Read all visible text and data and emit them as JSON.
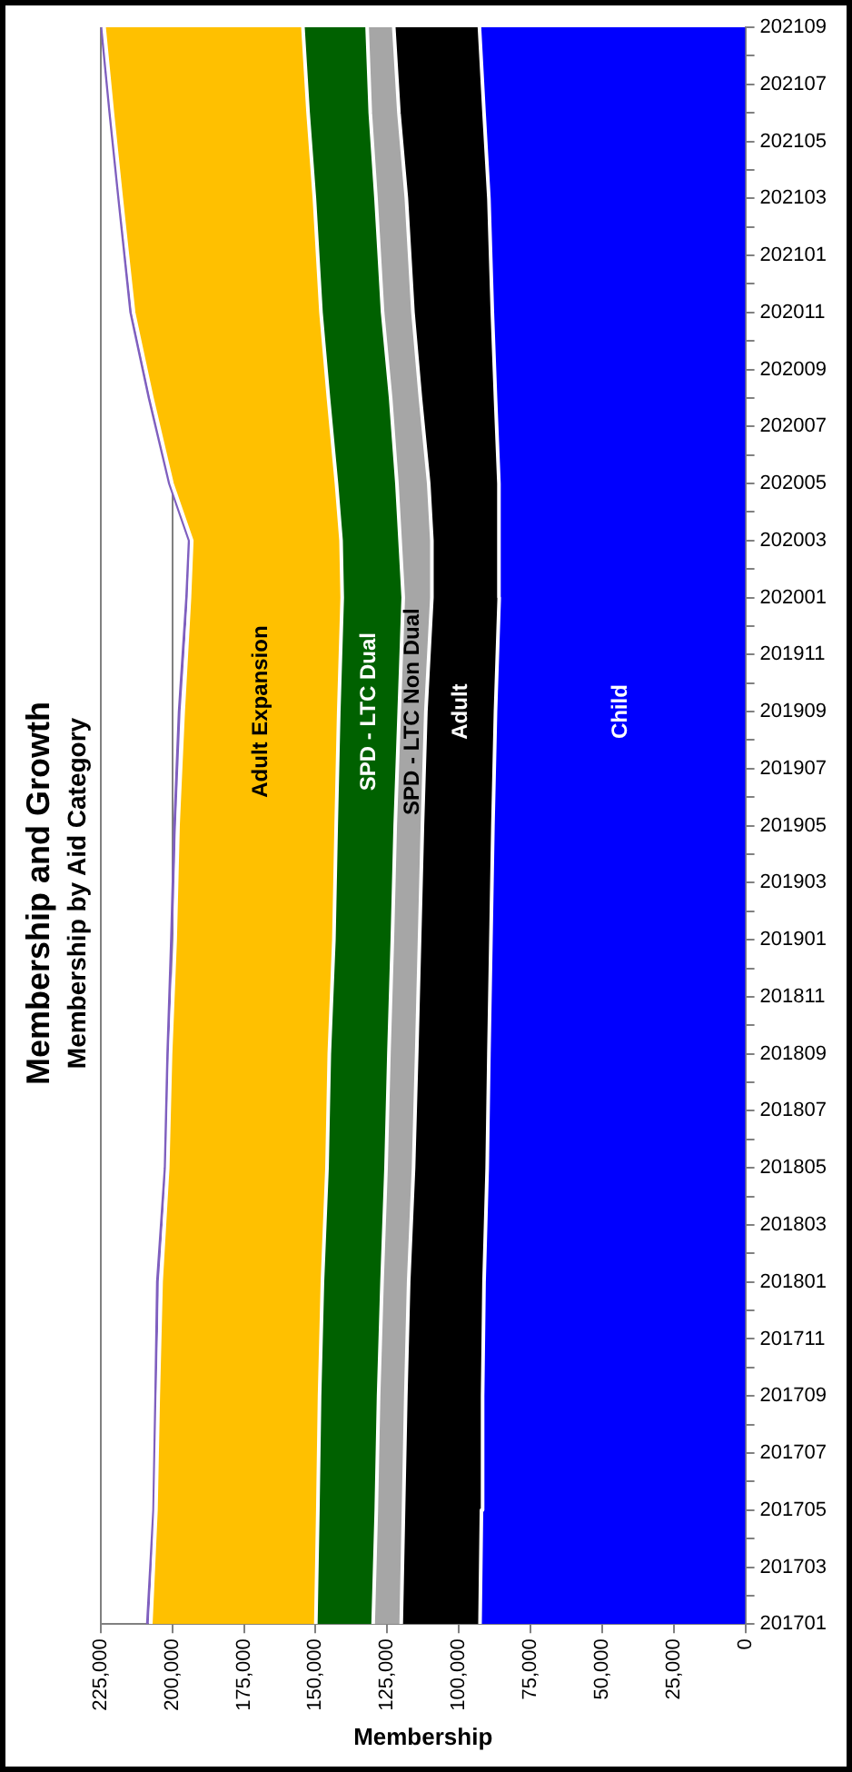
{
  "chart_data": {
    "type": "area",
    "orientation": "horizontal",
    "title": "Membership and Growth",
    "subtitle": "Membership by Aid Category",
    "xlabel": "Membership",
    "x": [
      "2017-01",
      "2017-05",
      "2017-09",
      "2018-01",
      "2018-05",
      "2018-09",
      "2019-01",
      "2019-05",
      "2019-09",
      "2020-01",
      "2020-03",
      "2020-05",
      "2020-08",
      "2020-11",
      "2021-03",
      "2021-06",
      "2021-09"
    ],
    "ylim": [
      "2017-01",
      "2021-09"
    ],
    "yticks": [
      {
        "value": "2017-01",
        "label": "201701"
      },
      {
        "value": "2017-02",
        "label": null
      },
      {
        "value": "2017-03",
        "label": "201703"
      },
      {
        "value": "2017-04",
        "label": null
      },
      {
        "value": "2017-05",
        "label": "201705"
      },
      {
        "value": "2017-06",
        "label": null
      },
      {
        "value": "2017-07",
        "label": "201707"
      },
      {
        "value": "2017-08",
        "label": null
      },
      {
        "value": "2017-09",
        "label": "201709"
      },
      {
        "value": "2017-10",
        "label": null
      },
      {
        "value": "2017-11",
        "label": "201711"
      },
      {
        "value": "2017-12",
        "label": null
      },
      {
        "value": "2018-01",
        "label": "201801"
      },
      {
        "value": "2018-02",
        "label": null
      },
      {
        "value": "2018-03",
        "label": "201803"
      },
      {
        "value": "2018-04",
        "label": null
      },
      {
        "value": "2018-05",
        "label": "201805"
      },
      {
        "value": "2018-06",
        "label": null
      },
      {
        "value": "2018-07",
        "label": "201807"
      },
      {
        "value": "2018-08",
        "label": null
      },
      {
        "value": "2018-09",
        "label": "201809"
      },
      {
        "value": "2018-10",
        "label": null
      },
      {
        "value": "2018-11",
        "label": "201811"
      },
      {
        "value": "2018-12",
        "label": null
      },
      {
        "value": "2019-01",
        "label": "201901"
      },
      {
        "value": "2019-02",
        "label": null
      },
      {
        "value": "2019-03",
        "label": "201903"
      },
      {
        "value": "2019-04",
        "label": null
      },
      {
        "value": "2019-05",
        "label": "201905"
      },
      {
        "value": "2019-06",
        "label": null
      },
      {
        "value": "2019-07",
        "label": "201907"
      },
      {
        "value": "2019-08",
        "label": null
      },
      {
        "value": "2019-09",
        "label": "201909"
      },
      {
        "value": "2019-10",
        "label": null
      },
      {
        "value": "2019-11",
        "label": "201911"
      },
      {
        "value": "2019-12",
        "label": null
      },
      {
        "value": "2020-01",
        "label": "202001"
      },
      {
        "value": "2020-02",
        "label": null
      },
      {
        "value": "2020-03",
        "label": "202003"
      },
      {
        "value": "2020-04",
        "label": null
      },
      {
        "value": "2020-05",
        "label": "202005"
      },
      {
        "value": "2020-06",
        "label": null
      },
      {
        "value": "2020-07",
        "label": "202007"
      },
      {
        "value": "2020-08",
        "label": null
      },
      {
        "value": "2020-09",
        "label": "202009"
      },
      {
        "value": "2020-10",
        "label": null
      },
      {
        "value": "2020-11",
        "label": "202011"
      },
      {
        "value": "2020-12",
        "label": null
      },
      {
        "value": "2021-01",
        "label": "202101"
      },
      {
        "value": "2021-02",
        "label": null
      },
      {
        "value": "2021-03",
        "label": "202103"
      },
      {
        "value": "2021-04",
        "label": null
      },
      {
        "value": "2021-05",
        "label": "202105"
      },
      {
        "value": "2021-06",
        "label": null
      },
      {
        "value": "2021-07",
        "label": "202107"
      },
      {
        "value": "2021-08",
        "label": null
      },
      {
        "value": "2021-09",
        "label": "202109"
      }
    ],
    "xlim": [
      225000,
      0
    ],
    "xticks": [
      {
        "value": 225000,
        "label": "225,000"
      },
      {
        "value": 200000,
        "label": "200,000"
      },
      {
        "value": 175000,
        "label": "175,000"
      },
      {
        "value": 150000,
        "label": "150,000"
      },
      {
        "value": 125000,
        "label": "125,000"
      },
      {
        "value": 100000,
        "label": "100,000"
      },
      {
        "value": 75000,
        "label": "75,000"
      },
      {
        "value": 50000,
        "label": "50,000"
      },
      {
        "value": 25000,
        "label": "25,000"
      },
      {
        "value": 0,
        "label": "0"
      }
    ],
    "stacked": true,
    "grid": "x",
    "series": [
      {
        "name": "Child",
        "color": "#0000ff",
        "values": [
          92600,
          92100,
          91700,
          91200,
          90100,
          89500,
          88800,
          88100,
          87200,
          85900,
          85900,
          86100,
          87200,
          88300,
          89500,
          91200,
          92800
        ]
      },
      {
        "name": "Adult",
        "color": "#000000",
        "values": [
          27500,
          27200,
          26800,
          26300,
          25700,
          25200,
          24900,
          24600,
          24300,
          23500,
          23500,
          24400,
          26200,
          27700,
          28800,
          29700,
          29900
        ]
      },
      {
        "name": "SPD - LTC Non Dual",
        "color": "#a6a6a6",
        "values": [
          9800,
          9500,
          9500,
          9300,
          9600,
          9700,
          9500,
          9500,
          9300,
          10000,
          11100,
          11100,
          10400,
          10600,
          10600,
          10000,
          9300
        ]
      },
      {
        "name": "SPD - LTC Dual",
        "color": "#006100",
        "values": [
          20000,
          20400,
          20600,
          20800,
          20600,
          20800,
          20400,
          20600,
          21100,
          21300,
          20600,
          21100,
          21700,
          21500,
          21500,
          21700,
          22400
        ]
      },
      {
        "name": "Adult Expansion",
        "color": "#ffc000",
        "values": [
          57600,
          56500,
          56300,
          56300,
          55600,
          55400,
          55400,
          55200,
          54300,
          53300,
          52100,
          57400,
          61600,
          65400,
          67400,
          68300,
          69400
        ]
      },
      {
        "type": "line",
        "color": "#7f5fbf",
        "values": [
          208700,
          206500,
          205800,
          205200,
          202500,
          201600,
          200300,
          199200,
          197600,
          195000,
          194100,
          201000,
          208100,
          214500,
          218700,
          221800,
          224700
        ]
      }
    ]
  }
}
